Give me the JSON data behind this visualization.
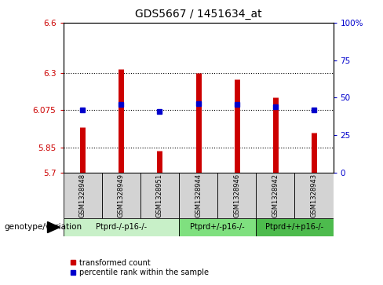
{
  "title": "GDS5667 / 1451634_at",
  "samples": [
    "GSM1328948",
    "GSM1328949",
    "GSM1328951",
    "GSM1328944",
    "GSM1328946",
    "GSM1328942",
    "GSM1328943"
  ],
  "red_values": [
    5.97,
    6.32,
    5.83,
    6.3,
    6.26,
    6.15,
    5.94
  ],
  "blue_values": [
    6.075,
    6.11,
    6.065,
    6.115,
    6.11,
    6.095,
    6.075
  ],
  "groups": [
    {
      "label": "Ptprd-/-p16-/-",
      "start": 0,
      "end": 3,
      "color": "#c8f0c8"
    },
    {
      "label": "Ptprd+/-p16-/-",
      "start": 3,
      "end": 5,
      "color": "#7fe07f"
    },
    {
      "label": "Ptprd+/+p16-/-",
      "start": 5,
      "end": 7,
      "color": "#4dbb4d"
    }
  ],
  "ylim": [
    5.7,
    6.6
  ],
  "yticks_left": [
    5.7,
    5.85,
    6.075,
    6.3,
    6.6
  ],
  "yticks_right": [
    0,
    25,
    50,
    75,
    100
  ],
  "ytick_labels_left": [
    "5.7",
    "5.85",
    "6.075",
    "6.3",
    "6.6"
  ],
  "ytick_labels_right": [
    "0",
    "25",
    "50",
    "75",
    "100%"
  ],
  "hlines": [
    5.85,
    6.075,
    6.3
  ],
  "bar_bottom": 5.7,
  "red_color": "#cc0000",
  "blue_color": "#0000cc",
  "genotype_label": "genotype/variation",
  "legend_red": "transformed count",
  "legend_blue": "percentile rank within the sample",
  "sample_box_color": "#d3d3d3",
  "linewidth_bar": 5
}
